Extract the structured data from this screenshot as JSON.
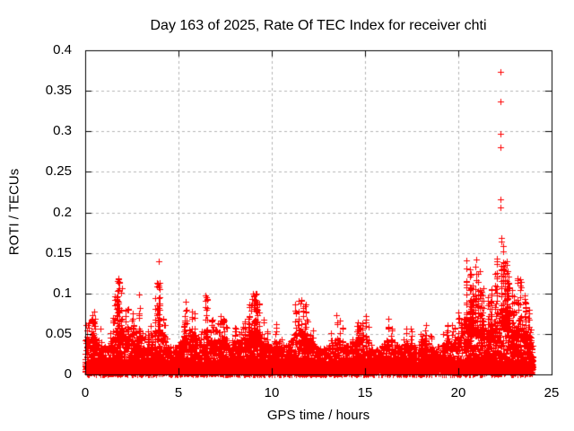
{
  "chart_data": {
    "type": "scatter",
    "title": "Day 163 of 2025, Rate Of TEC Index for receiver chti",
    "xlabel": "GPS time / hours",
    "ylabel": "ROTI / TECUs",
    "xlim": [
      0,
      25
    ],
    "ylim": [
      0,
      0.4
    ],
    "xtick_labels": [
      "0",
      "5",
      "10",
      "15",
      "20",
      "25"
    ],
    "ytick_labels": [
      "0",
      "0.05",
      "0.1",
      "0.15",
      "0.2",
      "0.25",
      "0.3",
      "0.35",
      "0.4"
    ],
    "grid": true,
    "legend": "none",
    "marker": {
      "glyph": "plus",
      "color": "#ff0000",
      "size": 7
    },
    "grid_color": "#b4b4b4",
    "axis_color": "#000000",
    "data_span_hours": [
      0,
      24
    ],
    "sample_step_hours": 0.05,
    "envelope_step_hours": 0.25,
    "envelope_max": [
      0.065,
      0.07,
      0.08,
      0.06,
      0.05,
      0.055,
      0.07,
      0.125,
      0.105,
      0.085,
      0.075,
      0.095,
      0.102,
      0.075,
      0.06,
      0.089,
      0.148,
      0.065,
      0.045,
      0.042,
      0.05,
      0.07,
      0.105,
      0.088,
      0.065,
      0.095,
      0.1,
      0.07,
      0.055,
      0.076,
      0.065,
      0.048,
      0.06,
      0.062,
      0.068,
      0.08,
      0.105,
      0.098,
      0.08,
      0.06,
      0.055,
      0.065,
      0.06,
      0.046,
      0.052,
      0.089,
      0.095,
      0.091,
      0.065,
      0.055,
      0.05,
      0.042,
      0.046,
      0.056,
      0.076,
      0.06,
      0.05,
      0.048,
      0.072,
      0.06,
      0.08,
      0.052,
      0.042,
      0.036,
      0.055,
      0.07,
      0.065,
      0.046,
      0.05,
      0.06,
      0.055,
      0.046,
      0.056,
      0.065,
      0.06,
      0.052,
      0.046,
      0.06,
      0.071,
      0.055,
      0.08,
      0.13,
      0.151,
      0.12,
      0.152,
      0.12,
      0.095,
      0.105,
      0.13,
      0.175,
      0.16,
      0.115,
      0.095,
      0.13,
      0.105,
      0.085,
      0.06
    ],
    "baseline_band": {
      "solid_top": 0.016,
      "band_base": 0.017,
      "band_envelope_factor": 0.4,
      "band_cap": 0.08
    },
    "outliers": [
      [
        22.26,
        0.373
      ],
      [
        22.24,
        0.337
      ],
      [
        22.27,
        0.297
      ],
      [
        22.26,
        0.28
      ],
      [
        22.27,
        0.216
      ],
      [
        22.25,
        0.206
      ]
    ],
    "seed": 163
  }
}
